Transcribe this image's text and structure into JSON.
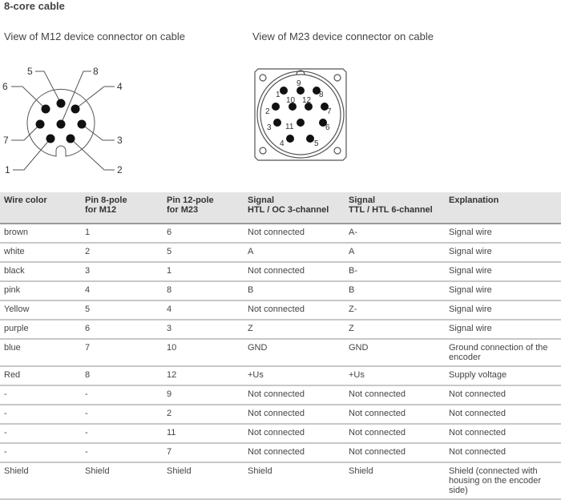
{
  "title": "8-core cable",
  "captions": {
    "m12": "View of M12 device connector on cable",
    "m23": "View of M23 device connector on cable"
  },
  "m12_pins": [
    "1",
    "2",
    "3",
    "4",
    "5",
    "6",
    "7",
    "8"
  ],
  "m23_pins": [
    "1",
    "2",
    "3",
    "4",
    "5",
    "6",
    "7",
    "8",
    "9",
    "10",
    "11",
    "12"
  ],
  "table": {
    "headers": [
      [
        "Wire color",
        ""
      ],
      [
        "Pin 8-pole",
        "for M12"
      ],
      [
        "Pin 12-pole",
        "for M23"
      ],
      [
        "Signal",
        "HTL / OC 3-channel"
      ],
      [
        "Signal",
        "TTL / HTL 6-channel"
      ],
      [
        "Explanation",
        ""
      ]
    ],
    "rows": [
      [
        "brown",
        "1",
        "6",
        "Not connected",
        "A-",
        "Signal wire"
      ],
      [
        "white",
        "2",
        "5",
        "A",
        "A",
        "Signal wire"
      ],
      [
        "black",
        "3",
        "1",
        "Not connected",
        "B-",
        "Signal wire"
      ],
      [
        "pink",
        "4",
        "8",
        "B",
        "B",
        "Signal wire"
      ],
      [
        "Yellow",
        "5",
        "4",
        "Not connected",
        "Z-",
        "Signal wire"
      ],
      [
        "purple",
        "6",
        "3",
        "Z",
        "Z",
        "Signal wire"
      ],
      [
        "blue",
        "7",
        "10",
        "GND",
        "GND",
        "Ground connection of the encoder"
      ],
      [
        "Red",
        "8",
        "12",
        "+Us",
        "+Us",
        "Supply voltage"
      ],
      [
        "-",
        "-",
        "9",
        "Not connected",
        "Not connected",
        "Not connected"
      ],
      [
        "-",
        "-",
        "2",
        "Not connected",
        "Not connected",
        "Not connected"
      ],
      [
        "-",
        "-",
        "11",
        "Not connected",
        "Not connected",
        "Not connected"
      ],
      [
        "-",
        "-",
        "7",
        "Not connected",
        "Not connected",
        "Not connected"
      ],
      [
        "Shield",
        "Shield",
        "Shield",
        "Shield",
        "Shield",
        "Shield (connected with housing on the encoder side)"
      ]
    ]
  }
}
